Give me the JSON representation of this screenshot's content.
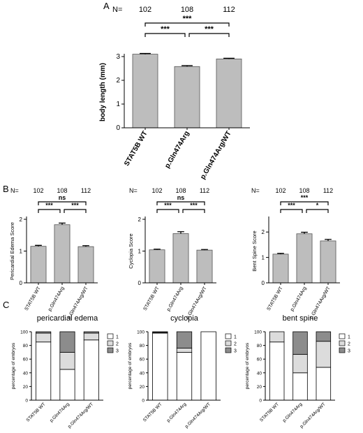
{
  "panels": {
    "A": {
      "label": "A",
      "n_label": "N=",
      "n_values": [
        "102",
        "108",
        "112"
      ],
      "chart_data": {
        "type": "bar",
        "categories": [
          "STAT5B WT",
          "p.Gln474Arg",
          "p.Gln474Arg/WT"
        ],
        "values": [
          3.1,
          2.58,
          2.9
        ],
        "errors": [
          0.03,
          0.04,
          0.03
        ],
        "ylabel": "body length (mm)",
        "ylim": [
          0,
          3
        ],
        "yticks": [
          "0",
          "1",
          "2",
          "3"
        ],
        "significance": [
          {
            "from": 0,
            "to": 2,
            "label": "***",
            "level": 2
          },
          {
            "from": 0,
            "to": 1,
            "label": "***",
            "level": 1
          },
          {
            "from": 1,
            "to": 2,
            "label": "***",
            "level": 1
          }
        ],
        "bar_color": "#bdbdbd"
      }
    },
    "B": {
      "label": "B",
      "charts": [
        {
          "n_label": "N=",
          "n_values": [
            "102",
            "108",
            "112"
          ],
          "chart_data": {
            "type": "bar",
            "categories": [
              "STAT5B WT",
              "p.Gln474Arg",
              "p.Gln474Arg/WT"
            ],
            "values": [
              1.15,
              1.83,
              1.14
            ],
            "errors": [
              0.03,
              0.05,
              0.03
            ],
            "ylabel": "Pericardial Edema Score",
            "ylim": [
              0,
              2
            ],
            "yticks": [
              "0",
              "1",
              "2"
            ],
            "significance": [
              {
                "from": 0,
                "to": 2,
                "label": "ns",
                "level": 2
              },
              {
                "from": 0,
                "to": 1,
                "label": "***",
                "level": 1
              },
              {
                "from": 1,
                "to": 2,
                "label": "***",
                "level": 1
              }
            ]
          }
        },
        {
          "n_label": "N=",
          "n_values": [
            "102",
            "108",
            "112"
          ],
          "chart_data": {
            "type": "bar",
            "categories": [
              "STAT5B WT",
              "p.Gln474Arg",
              "p.Gln474Arg/WT"
            ],
            "values": [
              1.04,
              1.55,
              1.03
            ],
            "errors": [
              0.02,
              0.06,
              0.02
            ],
            "ylabel": "Cyclopia Score",
            "ylim": [
              0,
              2
            ],
            "yticks": [
              "0",
              "1",
              "2"
            ],
            "significance": [
              {
                "from": 0,
                "to": 2,
                "label": "ns",
                "level": 2
              },
              {
                "from": 0,
                "to": 1,
                "label": "***",
                "level": 1
              },
              {
                "from": 1,
                "to": 2,
                "label": "***",
                "level": 1
              }
            ]
          }
        },
        {
          "n_label": "N=",
          "n_values": [
            "102",
            "108",
            "112"
          ],
          "chart_data": {
            "type": "bar",
            "categories": [
              "STAT5B WT",
              "p.Gln474Arg",
              "p.Gln474Arg/WT"
            ],
            "values": [
              1.13,
              1.93,
              1.65
            ],
            "errors": [
              0.03,
              0.06,
              0.06
            ],
            "ylabel": "Bent Spine Score",
            "ylim": [
              0,
              2.5
            ],
            "yticks": [
              "0",
              "1",
              "2"
            ],
            "significance": [
              {
                "from": 0,
                "to": 2,
                "label": "***",
                "level": 2
              },
              {
                "from": 0,
                "to": 1,
                "label": "***",
                "level": 1
              },
              {
                "from": 1,
                "to": 2,
                "label": "*",
                "level": 1
              }
            ]
          }
        }
      ]
    },
    "C": {
      "label": "C",
      "charts": [
        {
          "title": "pericardial edema",
          "chart_data": {
            "type": "bar",
            "stacked": true,
            "categories": [
              "STAT5B WT",
              "p.Gln474Arg",
              "p.Gln474Arg/WT"
            ],
            "series": [
              {
                "name": "1",
                "values": [
                  85,
                  45,
                  88
                ]
              },
              {
                "name": "2",
                "values": [
                  13,
                  25,
                  10
                ]
              },
              {
                "name": "3",
                "values": [
                  2,
                  30,
                  2
                ]
              }
            ],
            "ylabel": "percentage of embryos",
            "ylim": [
              0,
              100
            ],
            "yticks": [
              "0",
              "20",
              "40",
              "60",
              "80",
              "100"
            ]
          }
        },
        {
          "title": "cyclopia",
          "chart_data": {
            "type": "bar",
            "stacked": true,
            "categories": [
              "STAT5B WT",
              "p.Gln474Arg",
              "p.Gln474Arg/WT"
            ],
            "series": [
              {
                "name": "1",
                "values": [
                  98,
                  70,
                  100
                ]
              },
              {
                "name": "2",
                "values": [
                  1,
                  6,
                  0
                ]
              },
              {
                "name": "3",
                "values": [
                  1,
                  24,
                  0
                ]
              }
            ],
            "ylabel": "percentage of embryos",
            "ylim": [
              0,
              100
            ],
            "yticks": [
              "0",
              "20",
              "40",
              "60",
              "80",
              "100"
            ]
          }
        },
        {
          "title": "bent spine",
          "chart_data": {
            "type": "bar",
            "stacked": true,
            "categories": [
              "STAT5B WT",
              "p.Gln474Arg",
              "p.Gln474Arg/WT"
            ],
            "series": [
              {
                "name": "1",
                "values": [
                  85,
                  40,
                  48
                ]
              },
              {
                "name": "2",
                "values": [
                  15,
                  27,
                  38
                ]
              },
              {
                "name": "3",
                "values": [
                  0,
                  33,
                  14
                ]
              }
            ],
            "ylabel": "percentage of embryos",
            "ylim": [
              0,
              100
            ],
            "yticks": [
              "0",
              "20",
              "40",
              "60",
              "80",
              "100"
            ]
          }
        }
      ],
      "colors": [
        "#ffffff",
        "#dcdcdc",
        "#8c8c8c"
      ]
    }
  }
}
